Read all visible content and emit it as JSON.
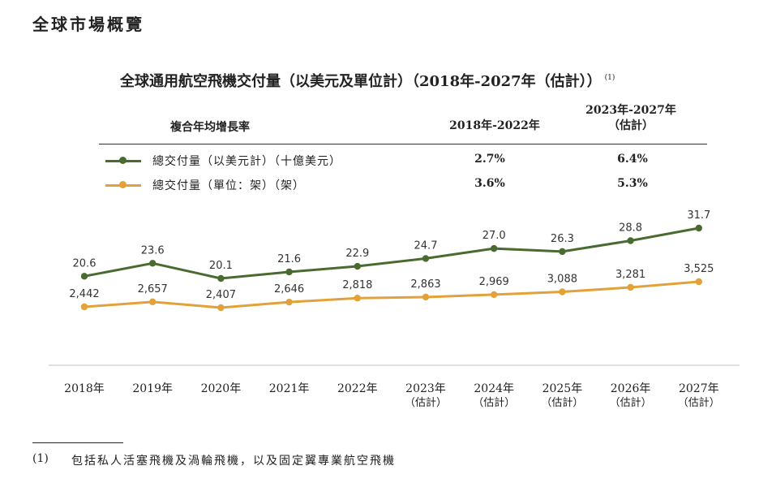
{
  "page": {
    "heading": "全球市場概覽",
    "chart_title": "全球通用航空飛機交付量（以美元及單位計）（2018年-2027年（估計））",
    "title_note": "(1)"
  },
  "cagr": {
    "label": "複合年均增長率",
    "col1": "2018年-2022年",
    "col2_line1": "2023年-2027年",
    "col2_line2": "（估計）",
    "rows": [
      {
        "label": "總交付量（以美元計）（十億美元）",
        "v1": "2.7%",
        "v2": "6.4%",
        "color": "#4a6b2f"
      },
      {
        "label": "總交付量（單位：架）（架）",
        "v1": "3.6%",
        "v2": "5.3%",
        "color": "#e3a13a"
      }
    ]
  },
  "chart_data": {
    "type": "line",
    "x": [
      "2018年",
      "2019年",
      "2020年",
      "2021年",
      "2022年",
      "2023年",
      "2024年",
      "2025年",
      "2026年",
      "2027年"
    ],
    "x_sub": [
      "",
      "",
      "",
      "",
      "",
      "（估計）",
      "（估計）",
      "（估計）",
      "（估計）",
      "（估計）"
    ],
    "series": [
      {
        "name": "總交付量（以美元計）（十億美元）",
        "color": "#4a6b2f",
        "values": [
          20.6,
          23.6,
          20.1,
          21.6,
          22.9,
          24.7,
          27.0,
          26.3,
          28.8,
          31.7
        ],
        "labels": [
          "20.6",
          "23.6",
          "20.1",
          "21.6",
          "22.9",
          "24.7",
          "27.0",
          "26.3",
          "28.8",
          "31.7"
        ]
      },
      {
        "name": "總交付量（單位：架）（架）",
        "color": "#e3a13a",
        "values": [
          2442,
          2657,
          2407,
          2646,
          2818,
          2863,
          2969,
          3088,
          3281,
          3525
        ],
        "labels": [
          "2,442",
          "2,657",
          "2,407",
          "2,646",
          "2,818",
          "2,863",
          "2,969",
          "3,088",
          "3,281",
          "3,525"
        ]
      }
    ],
    "axis_color": "#cccccc"
  },
  "footnote": {
    "mark": "(1)",
    "text": "包括私人活塞飛機及渦輪飛機，以及固定翼專業航空飛機"
  }
}
